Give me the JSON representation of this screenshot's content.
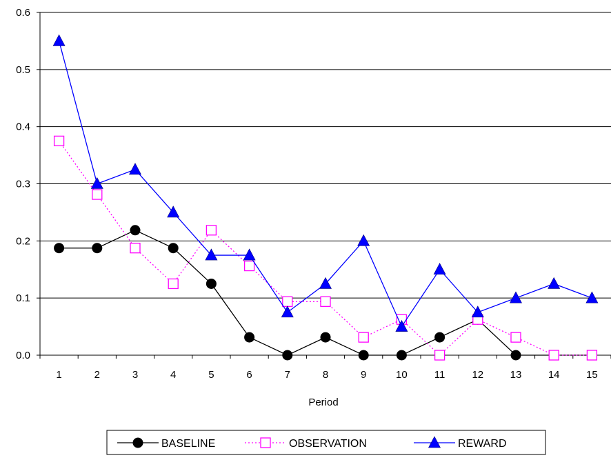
{
  "chart_data": {
    "type": "line",
    "title": "",
    "xlabel": "Period",
    "ylabel": "",
    "categories": [
      "1",
      "2",
      "3",
      "4",
      "5",
      "6",
      "7",
      "8",
      "9",
      "10",
      "11",
      "12",
      "13",
      "14",
      "15"
    ],
    "yticks": [
      "0.0",
      "0.1",
      "0.2",
      "0.3",
      "0.4",
      "0.5",
      "0.6"
    ],
    "ylim": [
      0,
      0.6
    ],
    "grid": "horizontal",
    "legend_position": "bottom",
    "series": [
      {
        "name": "BASELINE",
        "color": "#000000",
        "marker": "filled-circle",
        "line": "solid",
        "values": [
          0.1875,
          0.1875,
          0.21875,
          0.1875,
          0.125,
          0.03125,
          0,
          0.03125,
          0,
          0,
          0.03125,
          0.0625,
          0,
          0,
          0
        ]
      },
      {
        "name": "OBSERVATION",
        "color": "#ff00ff",
        "marker": "open-square",
        "line": "dotted",
        "values": [
          0.375,
          0.28125,
          0.1875,
          0.125,
          0.21875,
          0.15625,
          0.09375,
          0.09375,
          0.03125,
          0.0625,
          0,
          0.0625,
          0.03125,
          0,
          0
        ]
      },
      {
        "name": "REWARD",
        "color": "#0000ff",
        "marker": "filled-triangle",
        "line": "solid",
        "values": [
          0.55,
          0.3,
          0.325,
          0.25,
          0.175,
          0.175,
          0.075,
          0.125,
          0.2,
          0.05,
          0.15,
          0.075,
          0.1,
          0.125,
          0.1
        ]
      }
    ]
  }
}
